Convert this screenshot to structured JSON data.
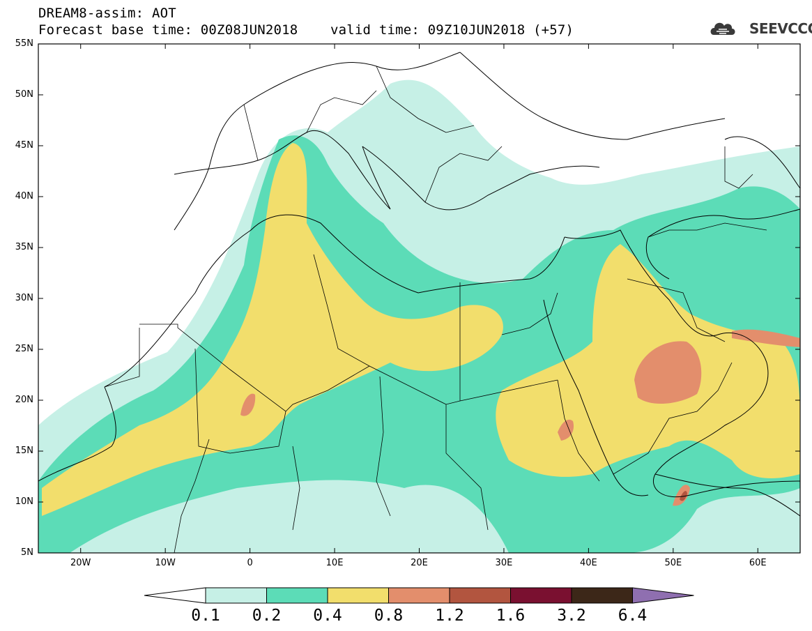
{
  "header": {
    "title_line1": "DREAM8-assim: AOT",
    "title_line2": "Forecast base time: 00Z08JUN2018    valid time: 09Z10JUN2018 (+57)",
    "logo_text": "SEEVCCC"
  },
  "map": {
    "lat_labels": [
      "55N",
      "50N",
      "45N",
      "40N",
      "35N",
      "30N",
      "25N",
      "20N",
      "15N",
      "10N",
      "5N"
    ],
    "lon_labels": [
      "20W",
      "10W",
      "0",
      "10E",
      "20E",
      "30E",
      "40E",
      "50E",
      "60E"
    ],
    "colors": {
      "c01": "#c6f0e6",
      "c02": "#5cdcb7",
      "c04": "#f2de6c",
      "c08": "#e38e6c",
      "c12": "#b2553f",
      "c16": "#7a1030",
      "c32": "#3c2718",
      "c64": "#8f6fb0"
    }
  },
  "colorbar": {
    "labels": [
      "0.1",
      "0.2",
      "0.4",
      "0.8",
      "1.2",
      "1.6",
      "3.2",
      "6.4"
    ]
  }
}
